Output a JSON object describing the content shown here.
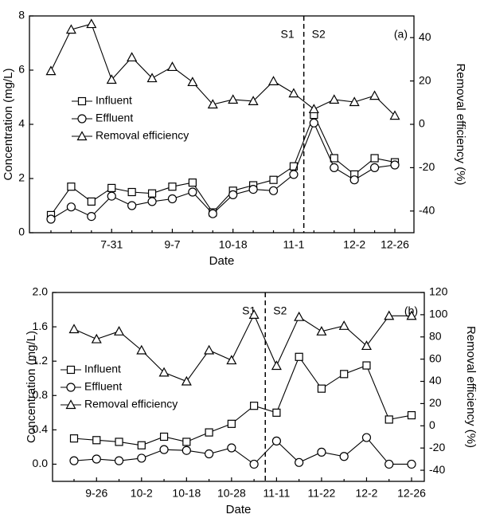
{
  "chart_data": [
    {
      "type": "line",
      "panel_label": "(a)",
      "stage_labels": [
        "S1",
        "S2"
      ],
      "x_label": "Date",
      "y_label": "Concentration (mg/L)",
      "y2_label": "Removal efficiency (%)",
      "categories": [
        null,
        null,
        null,
        "7-31",
        null,
        null,
        "9-7",
        null,
        null,
        "10-18",
        null,
        null,
        "11-1",
        null,
        null,
        "12-2",
        null,
        "12-26"
      ],
      "ylim": [
        0,
        8
      ],
      "yticks": [
        0,
        2,
        4,
        6,
        8
      ],
      "y2lim": [
        -50,
        50
      ],
      "y2ticks": [
        -40,
        -20,
        0,
        20,
        40
      ],
      "series": [
        {
          "name": "Influent",
          "color": "#000000",
          "marker": "square",
          "values": [
            0.65,
            1.7,
            1.15,
            1.65,
            1.5,
            1.45,
            1.7,
            1.85,
            0.75,
            1.55,
            1.75,
            1.95,
            2.45,
            4.35,
            2.75,
            2.15,
            2.75,
            2.6
          ]
        },
        {
          "name": "Effluent",
          "color": "#000000",
          "marker": "circle",
          "values": [
            0.5,
            0.95,
            0.6,
            1.35,
            1.0,
            1.15,
            1.25,
            1.5,
            0.7,
            1.4,
            1.6,
            1.55,
            2.15,
            4.05,
            2.4,
            1.95,
            2.4,
            2.5
          ]
        },
        {
          "name": "Removal efficiency",
          "color": "#000000",
          "marker": "triangle",
          "axis": "y2",
          "values": [
            24.6,
            43.7,
            46.3,
            20.6,
            30.9,
            21.3,
            26.5,
            19.5,
            9.2,
            11.4,
            10.7,
            19.9,
            14.3,
            7,
            11.4,
            10.3,
            13.2,
            4
          ]
        }
      ]
    },
    {
      "type": "line",
      "panel_label": "(b)",
      "stage_labels": [
        "S1",
        "S2"
      ],
      "x_label": "Date",
      "y_label": "Concentration (mg/L)",
      "y2_label": "Removal efficiency (%)",
      "categories": [
        null,
        "9-26",
        null,
        "10-2",
        null,
        "10-18",
        null,
        "10-28",
        null,
        "11-11",
        null,
        "11-22",
        null,
        "12-2",
        null,
        "12-26"
      ],
      "ylim": [
        -0.2,
        2.0
      ],
      "yticks": [
        {
          "value": 0,
          "label": "0.0"
        },
        0.4,
        0.8,
        1.2,
        1.6,
        {
          "value": 2,
          "label": "2.0"
        }
      ],
      "y2lim": [
        -50,
        120
      ],
      "y2ticks": [
        -40,
        -20,
        0,
        20,
        40,
        60,
        80,
        100,
        120
      ],
      "series": [
        {
          "name": "Influent",
          "color": "#000000",
          "marker": "square",
          "values": [
            0.3,
            0.28,
            0.26,
            0.22,
            0.32,
            0.26,
            0.37,
            0.47,
            0.68,
            0.6,
            1.25,
            0.88,
            1.05,
            1.15,
            0.52,
            0.57
          ]
        },
        {
          "name": "Effluent",
          "color": "#000000",
          "marker": "circle",
          "values": [
            0.04,
            0.06,
            0.04,
            0.07,
            0.17,
            0.16,
            0.12,
            0.19,
            0.0,
            0.27,
            0.02,
            0.14,
            0.09,
            0.31,
            0.0,
            0.0
          ]
        },
        {
          "name": "Removal efficiency",
          "color": "#000000",
          "marker": "triangle",
          "axis": "y2",
          "values": [
            87,
            78,
            85,
            68,
            48,
            40,
            68,
            59,
            100,
            54,
            98,
            85,
            90,
            72,
            99,
            99
          ]
        }
      ]
    }
  ]
}
